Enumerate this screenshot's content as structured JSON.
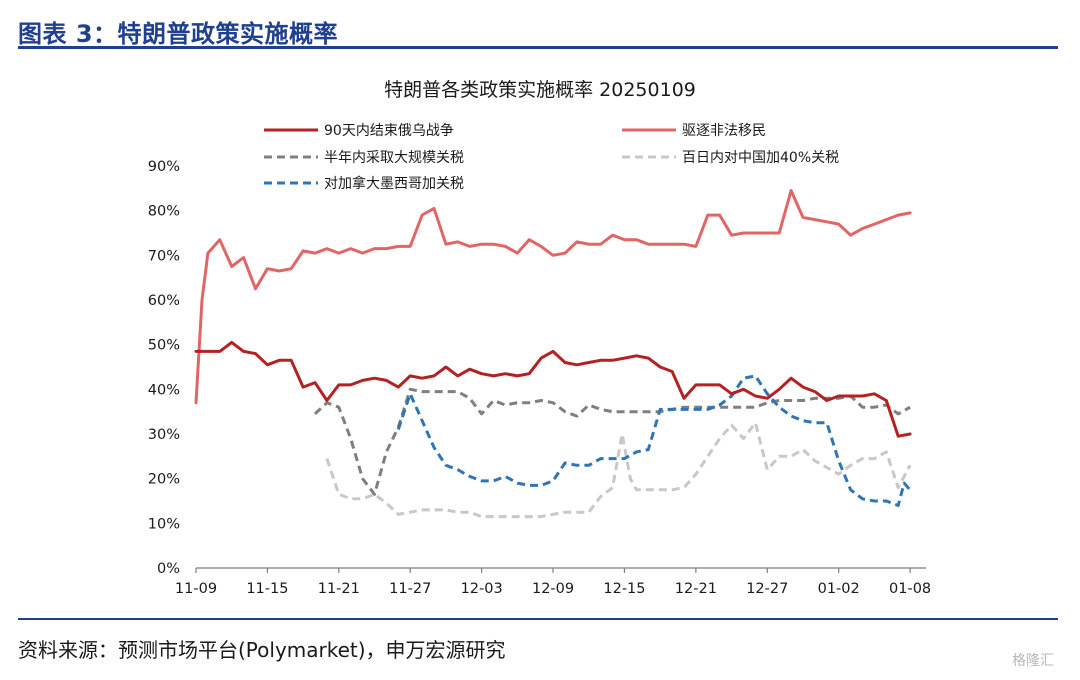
{
  "figure_title": "图表 3：特朗普政策实施概率",
  "source": "资料来源：预测市场平台(Polymarket)，申万宏源研究",
  "watermark": "格隆汇",
  "chart_data": {
    "type": "line",
    "title": "特朗普各类政策实施概率 20250109",
    "xlabel": "",
    "ylabel": "",
    "ylim": [
      0,
      90
    ],
    "yticks": [
      "0%",
      "10%",
      "20%",
      "30%",
      "40%",
      "50%",
      "60%",
      "70%",
      "80%",
      "90%"
    ],
    "x_range": [
      0,
      61
    ],
    "x_tick_labels": [
      "11-09",
      "11-15",
      "11-21",
      "11-27",
      "12-03",
      "12-09",
      "12-15",
      "12-21",
      "12-27",
      "01-02",
      "01-08"
    ],
    "x_tick_positions": [
      0,
      6,
      12,
      18,
      24,
      30,
      36,
      42,
      48,
      54,
      60
    ],
    "grid": false,
    "legend_position": "top",
    "series": [
      {
        "name": "90天内结束俄乌战争",
        "color": "#b22222",
        "style": "solid",
        "points": [
          [
            0,
            48.5
          ],
          [
            1,
            48.5
          ],
          [
            2,
            48.5
          ],
          [
            3,
            50.5
          ],
          [
            4,
            48.5
          ],
          [
            5,
            48
          ],
          [
            6,
            45.5
          ],
          [
            7,
            46.5
          ],
          [
            8,
            46.5
          ],
          [
            9,
            40.5
          ],
          [
            10,
            41.5
          ],
          [
            11,
            37.5
          ],
          [
            12,
            41
          ],
          [
            13,
            41
          ],
          [
            14,
            42
          ],
          [
            15,
            42.5
          ],
          [
            16,
            42
          ],
          [
            17,
            40.5
          ],
          [
            18,
            43
          ],
          [
            19,
            42.5
          ],
          [
            20,
            43
          ],
          [
            21,
            45
          ],
          [
            22,
            43
          ],
          [
            23,
            44.5
          ],
          [
            24,
            43.5
          ],
          [
            25,
            43
          ],
          [
            26,
            43.5
          ],
          [
            27,
            43
          ],
          [
            28,
            43.5
          ],
          [
            29,
            47
          ],
          [
            30,
            48.5
          ],
          [
            31,
            46
          ],
          [
            32,
            45.5
          ],
          [
            33,
            46
          ],
          [
            34,
            46.5
          ],
          [
            35,
            46.5
          ],
          [
            36,
            47
          ],
          [
            37,
            47.5
          ],
          [
            38,
            47
          ],
          [
            39,
            45
          ],
          [
            40,
            44
          ],
          [
            41,
            38
          ],
          [
            42,
            41
          ],
          [
            43,
            41
          ],
          [
            44,
            41
          ],
          [
            45,
            39
          ],
          [
            46,
            40
          ],
          [
            47,
            38.5
          ],
          [
            48,
            38
          ],
          [
            49,
            40
          ],
          [
            50,
            42.5
          ],
          [
            51,
            40.5
          ],
          [
            52,
            39.5
          ],
          [
            53,
            37.5
          ],
          [
            54,
            38.5
          ],
          [
            55,
            38.5
          ],
          [
            56,
            38.5
          ],
          [
            57,
            39
          ],
          [
            58,
            37.5
          ],
          [
            59,
            29.5
          ],
          [
            60,
            30
          ]
        ]
      },
      {
        "name": "驱逐非法移民",
        "color": "#e06666",
        "style": "solid",
        "points": [
          [
            0,
            37
          ],
          [
            0.5,
            60
          ],
          [
            1,
            70.5
          ],
          [
            2,
            73.5
          ],
          [
            3,
            67.5
          ],
          [
            4,
            69.5
          ],
          [
            5,
            62.5
          ],
          [
            6,
            67
          ],
          [
            7,
            66.5
          ],
          [
            8,
            67
          ],
          [
            9,
            71
          ],
          [
            10,
            70.5
          ],
          [
            11,
            71.5
          ],
          [
            12,
            70.5
          ],
          [
            13,
            71.5
          ],
          [
            14,
            70.5
          ],
          [
            15,
            71.5
          ],
          [
            16,
            71.5
          ],
          [
            17,
            72
          ],
          [
            18,
            72
          ],
          [
            19,
            79
          ],
          [
            20,
            80.5
          ],
          [
            21,
            72.5
          ],
          [
            22,
            73
          ],
          [
            23,
            72
          ],
          [
            24,
            72.5
          ],
          [
            25,
            72.5
          ],
          [
            26,
            72
          ],
          [
            27,
            70.5
          ],
          [
            28,
            73.5
          ],
          [
            29,
            72
          ],
          [
            30,
            70
          ],
          [
            31,
            70.5
          ],
          [
            32,
            73
          ],
          [
            33,
            72.5
          ],
          [
            34,
            72.5
          ],
          [
            35,
            74.5
          ],
          [
            36,
            73.5
          ],
          [
            37,
            73.5
          ],
          [
            38,
            72.5
          ],
          [
            39,
            72.5
          ],
          [
            40,
            72.5
          ],
          [
            41,
            72.5
          ],
          [
            42,
            72
          ],
          [
            43,
            79
          ],
          [
            44,
            79
          ],
          [
            45,
            74.5
          ],
          [
            46,
            75
          ],
          [
            47,
            75
          ],
          [
            48,
            75
          ],
          [
            49,
            75
          ],
          [
            50,
            84.5
          ],
          [
            51,
            78.5
          ],
          [
            52,
            78
          ],
          [
            53,
            77.5
          ],
          [
            54,
            77
          ],
          [
            55,
            74.5
          ],
          [
            56,
            76
          ],
          [
            57,
            77
          ],
          [
            58,
            78
          ],
          [
            59,
            79
          ],
          [
            60,
            79.5
          ]
        ]
      },
      {
        "name": "半年内采取大规模关税",
        "color": "#7f7f7f",
        "style": "dashed",
        "points": [
          [
            10,
            34.5
          ],
          [
            11,
            37
          ],
          [
            12,
            36
          ],
          [
            13,
            29
          ],
          [
            14,
            20
          ],
          [
            15,
            16.5
          ],
          [
            16,
            26
          ],
          [
            17,
            31.5
          ],
          [
            18,
            40
          ],
          [
            19,
            39.5
          ],
          [
            20,
            39.5
          ],
          [
            21,
            39.5
          ],
          [
            22,
            39.5
          ],
          [
            23,
            38
          ],
          [
            24,
            34.5
          ],
          [
            25,
            37.5
          ],
          [
            26,
            36.5
          ],
          [
            27,
            37
          ],
          [
            28,
            37
          ],
          [
            29,
            37.5
          ],
          [
            30,
            37
          ],
          [
            31,
            35
          ],
          [
            32,
            34
          ],
          [
            33,
            36.5
          ],
          [
            34,
            35.5
          ],
          [
            35,
            35
          ],
          [
            36,
            35
          ],
          [
            37,
            35
          ],
          [
            38,
            35
          ],
          [
            39,
            35
          ],
          [
            40,
            35.5
          ],
          [
            41,
            36
          ],
          [
            42,
            36
          ],
          [
            43,
            36
          ],
          [
            44,
            36
          ],
          [
            45,
            36
          ],
          [
            46,
            36
          ],
          [
            47,
            36
          ],
          [
            48,
            37
          ],
          [
            49,
            37.5
          ],
          [
            50,
            37.5
          ],
          [
            51,
            37.5
          ],
          [
            52,
            38
          ],
          [
            53,
            38
          ],
          [
            54,
            38
          ],
          [
            55,
            38.5
          ],
          [
            56,
            36
          ],
          [
            57,
            36
          ],
          [
            58,
            36.5
          ],
          [
            59,
            34.5
          ],
          [
            60,
            36
          ]
        ]
      },
      {
        "name": "百日内对中国加40%关税",
        "color": "#c8c8c8",
        "style": "dashed",
        "points": [
          [
            11,
            24.5
          ],
          [
            12,
            16.5
          ],
          [
            13,
            15.5
          ],
          [
            14,
            15.5
          ],
          [
            15,
            16.5
          ],
          [
            16,
            14.5
          ],
          [
            17,
            12
          ],
          [
            18,
            12.5
          ],
          [
            19,
            13
          ],
          [
            20,
            13
          ],
          [
            21,
            13
          ],
          [
            22,
            12.5
          ],
          [
            23,
            12.5
          ],
          [
            24,
            11.5
          ],
          [
            25,
            11.5
          ],
          [
            26,
            11.5
          ],
          [
            27,
            11.5
          ],
          [
            28,
            11.5
          ],
          [
            29,
            11.5
          ],
          [
            30,
            12
          ],
          [
            31,
            12.5
          ],
          [
            32,
            12.5
          ],
          [
            33,
            12.5
          ],
          [
            34,
            16
          ],
          [
            35,
            18
          ],
          [
            35.8,
            30
          ],
          [
            36.5,
            20
          ],
          [
            37,
            17.5
          ],
          [
            38,
            17.5
          ],
          [
            39,
            17.5
          ],
          [
            40,
            17.5
          ],
          [
            41,
            18
          ],
          [
            42,
            21
          ],
          [
            43,
            25
          ],
          [
            44,
            29
          ],
          [
            45,
            32
          ],
          [
            46,
            29
          ],
          [
            47,
            32.5
          ],
          [
            48,
            22
          ],
          [
            49,
            25
          ],
          [
            50,
            25
          ],
          [
            51,
            26.5
          ],
          [
            52,
            24
          ],
          [
            53,
            22.5
          ],
          [
            54,
            21
          ],
          [
            55,
            23
          ],
          [
            56,
            24.5
          ],
          [
            57,
            24.5
          ],
          [
            58,
            26
          ],
          [
            59,
            18
          ],
          [
            60,
            23
          ]
        ]
      },
      {
        "name": "对加拿大墨西哥加关税",
        "color": "#2e75b6",
        "style": "dashed",
        "points": [
          [
            17,
            31
          ],
          [
            18,
            39
          ],
          [
            19,
            33
          ],
          [
            20,
            27
          ],
          [
            21,
            23
          ],
          [
            22,
            22
          ],
          [
            23,
            20.5
          ],
          [
            24,
            19.5
          ],
          [
            25,
            19.5
          ],
          [
            26,
            20.5
          ],
          [
            27,
            19
          ],
          [
            28,
            18.5
          ],
          [
            29,
            18.5
          ],
          [
            30,
            19.5
          ],
          [
            31,
            23.5
          ],
          [
            32,
            23
          ],
          [
            33,
            23
          ],
          [
            34,
            24.5
          ],
          [
            35,
            24.5
          ],
          [
            36,
            24.5
          ],
          [
            37,
            26
          ],
          [
            38,
            26.5
          ],
          [
            39,
            35.5
          ],
          [
            40,
            35.5
          ],
          [
            41,
            35.5
          ],
          [
            42,
            35.5
          ],
          [
            43,
            35.5
          ],
          [
            44,
            36.5
          ],
          [
            45,
            38.5
          ],
          [
            46,
            42.5
          ],
          [
            47,
            43
          ],
          [
            48,
            39
          ],
          [
            49,
            36
          ],
          [
            50,
            34
          ],
          [
            51,
            33
          ],
          [
            52,
            32.5
          ],
          [
            53,
            32.5
          ],
          [
            54,
            24
          ],
          [
            55,
            17.5
          ],
          [
            56,
            15.5
          ],
          [
            57,
            15
          ],
          [
            58,
            15
          ],
          [
            59,
            14
          ],
          [
            59.5,
            19
          ],
          [
            60,
            17.5
          ]
        ]
      }
    ]
  }
}
